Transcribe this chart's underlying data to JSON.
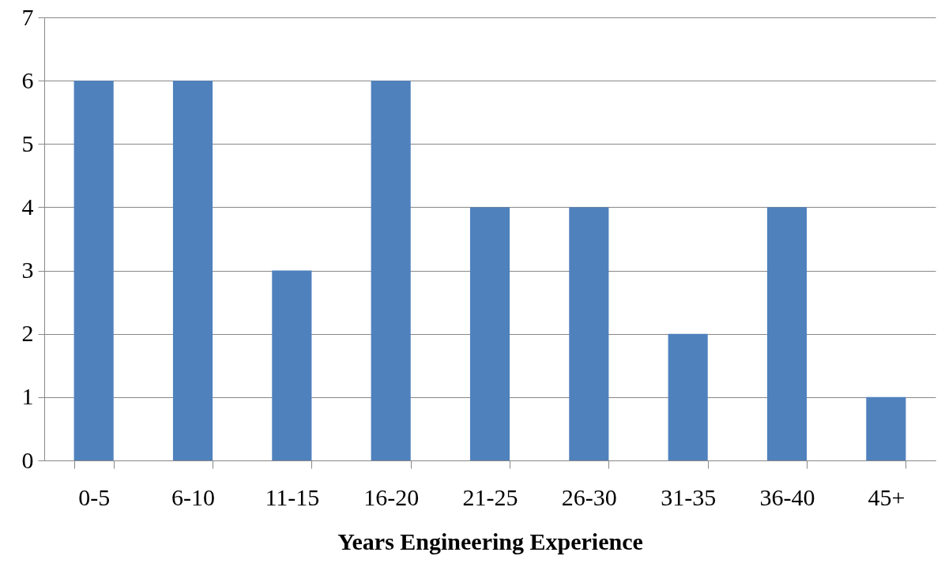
{
  "chart_data": {
    "type": "bar",
    "xlabel": "Years Engineering Experience",
    "categories": [
      "0-5",
      "6-10",
      "11-15",
      "16-20",
      "21-25",
      "26-30",
      "31-35",
      "36-40",
      "45+"
    ],
    "values": [
      6,
      6,
      3,
      6,
      4,
      4,
      2,
      4,
      1
    ],
    "color": "#4f81bd",
    "ylim": [
      0,
      7
    ],
    "yticks": [
      0,
      1,
      2,
      3,
      4,
      5,
      6,
      7
    ],
    "grid": "y"
  }
}
